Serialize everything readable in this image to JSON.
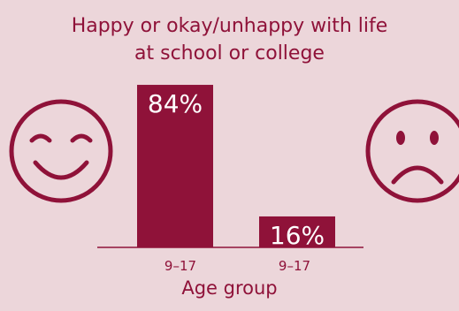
{
  "chart_data": {
    "type": "bar",
    "title": "Happy or okay/unhappy with life\nat school or college",
    "xlabel": "Age group",
    "ylabel": "",
    "categories": [
      "9–17",
      "9–17"
    ],
    "values": [
      84,
      16
    ],
    "value_labels": [
      "84%",
      "16%"
    ],
    "ylim": [
      0,
      100
    ],
    "grid": false,
    "legend": "none"
  },
  "icons": {
    "left": "smiling-face-icon",
    "right": "sad-face-icon"
  },
  "colors": {
    "background": "#ecd6da",
    "bar": "#8f1239",
    "text": "#8f1239",
    "value_label": "#ffffff",
    "axis": "#8f1239"
  }
}
